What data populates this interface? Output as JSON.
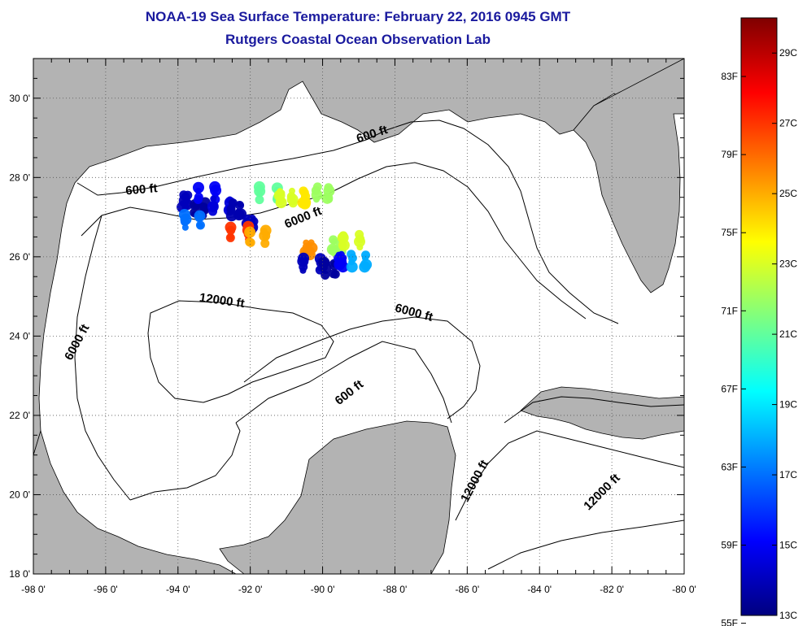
{
  "title": "NOAA-19 Sea Surface Temperature:  February 22, 2016 0945 GMT",
  "subtitle": "Rutgers Coastal Ocean Observation Lab",
  "map": {
    "lon_range": [
      -98,
      -80
    ],
    "lat_range": [
      18,
      31
    ],
    "lon_ticks": [
      {
        "value": -98,
        "label": "-98 0'"
      },
      {
        "value": -96,
        "label": "-96 0'"
      },
      {
        "value": -94,
        "label": "-94 0'"
      },
      {
        "value": -92,
        "label": "-92 0'"
      },
      {
        "value": -90,
        "label": "-90 0'"
      },
      {
        "value": -88,
        "label": "-88 0'"
      },
      {
        "value": -86,
        "label": "-86 0'"
      },
      {
        "value": -84,
        "label": "-84 0'"
      },
      {
        "value": -82,
        "label": "-82 0'"
      },
      {
        "value": -80,
        "label": "-80 0'"
      }
    ],
    "lat_ticks": [
      {
        "value": 18,
        "label": "18 0'"
      },
      {
        "value": 20,
        "label": "20 0'"
      },
      {
        "value": 22,
        "label": "22 0'"
      },
      {
        "value": 24,
        "label": "24 0'"
      },
      {
        "value": 26,
        "label": "26 0'"
      },
      {
        "value": 28,
        "label": "28 0'"
      },
      {
        "value": 30,
        "label": "30 0'"
      }
    ],
    "contour_labels": [
      {
        "text": "600 ft",
        "lon": -88.6,
        "lat": 29.0,
        "angle": -18
      },
      {
        "text": "600 ft",
        "lon": -95.0,
        "lat": 27.6,
        "angle": -5
      },
      {
        "text": "6000 ft",
        "lon": -90.5,
        "lat": 26.9,
        "angle": -22
      },
      {
        "text": "12000 ft",
        "lon": -92.8,
        "lat": 24.8,
        "angle": 8
      },
      {
        "text": "6000 ft",
        "lon": -87.5,
        "lat": 24.5,
        "angle": 15
      },
      {
        "text": "6000 ft",
        "lon": -96.7,
        "lat": 23.8,
        "angle": -62
      },
      {
        "text": "600 ft",
        "lon": -89.2,
        "lat": 22.5,
        "angle": -38
      },
      {
        "text": "12000 ft",
        "lon": -85.7,
        "lat": 20.3,
        "angle": -62
      },
      {
        "text": "12000 ft",
        "lon": -82.2,
        "lat": 20.0,
        "angle": -45
      }
    ]
  },
  "colorbar": {
    "colors": [
      "#00007f",
      "#0000ff",
      "#007fff",
      "#00ffff",
      "#7fff7f",
      "#ffff00",
      "#ff7f00",
      "#ff0000",
      "#7f0000"
    ],
    "min_c": 13,
    "max_c": 30,
    "celsius_ticks": [
      {
        "value": 13,
        "label": "13C"
      },
      {
        "value": 15,
        "label": "15C"
      },
      {
        "value": 17,
        "label": "17C"
      },
      {
        "value": 19,
        "label": "19C"
      },
      {
        "value": 21,
        "label": "21C"
      },
      {
        "value": 23,
        "label": "23C"
      },
      {
        "value": 25,
        "label": "25C"
      },
      {
        "value": 27,
        "label": "27C"
      },
      {
        "value": 29,
        "label": "29C"
      }
    ],
    "fahrenheit_ticks": [
      {
        "value": 55,
        "label": "55F"
      },
      {
        "value": 59,
        "label": "59F"
      },
      {
        "value": 63,
        "label": "63F"
      },
      {
        "value": 67,
        "label": "67F"
      },
      {
        "value": 71,
        "label": "71F"
      },
      {
        "value": 75,
        "label": "75F"
      },
      {
        "value": 79,
        "label": "79F"
      },
      {
        "value": 83,
        "label": "83F"
      }
    ]
  },
  "sst_patches": [
    {
      "lon": -93.8,
      "lat": 27.4,
      "temp": 14
    },
    {
      "lon": -93.4,
      "lat": 27.2,
      "temp": 13.5
    },
    {
      "lon": -93.2,
      "lat": 27.6,
      "temp": 15
    },
    {
      "lon": -92.8,
      "lat": 27.3,
      "temp": 14.5
    },
    {
      "lon": -92.4,
      "lat": 27.2,
      "temp": 13.8
    },
    {
      "lon": -92.0,
      "lat": 26.8,
      "temp": 14
    },
    {
      "lon": -93.6,
      "lat": 26.9,
      "temp": 17
    },
    {
      "lon": -91.5,
      "lat": 27.6,
      "temp": 21
    },
    {
      "lon": -91.0,
      "lat": 27.5,
      "temp": 23
    },
    {
      "lon": -90.5,
      "lat": 27.5,
      "temp": 24
    },
    {
      "lon": -90.0,
      "lat": 27.6,
      "temp": 22
    },
    {
      "lon": -92.3,
      "lat": 26.6,
      "temp": 27
    },
    {
      "lon": -91.8,
      "lat": 26.5,
      "temp": 25
    },
    {
      "lon": -90.4,
      "lat": 26.2,
      "temp": 25.5
    },
    {
      "lon": -89.6,
      "lat": 26.3,
      "temp": 22
    },
    {
      "lon": -89.2,
      "lat": 26.4,
      "temp": 23
    },
    {
      "lon": -90.3,
      "lat": 25.8,
      "temp": 14
    },
    {
      "lon": -89.8,
      "lat": 25.7,
      "temp": 13.5
    },
    {
      "lon": -89.5,
      "lat": 25.9,
      "temp": 15
    },
    {
      "lon": -89.0,
      "lat": 25.9,
      "temp": 18
    }
  ]
}
